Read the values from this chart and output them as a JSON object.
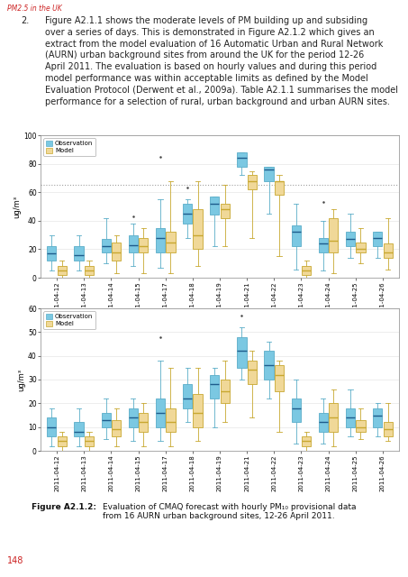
{
  "header_text": "PM2.5 in the UK",
  "para_num": "2.",
  "body_text": "Figure A2.1.1 shows the moderate levels of PM building up and subsiding\nover a series of days. This is demonstrated in Figure A2.1.2 which gives an\nextract from the model evaluation of 16 Automatic Urban and Rural Network\n(AURN) urban background sites from around the UK for the period 12-26\nApril 2011. The evaluation is based on hourly values and during this period\nmodel performance was within acceptable limits as defined by the Model\nEvaluation Protocol (Derwent et al., 2009a). Table A2.1.1 summarises the model\nperformance for a selection of rural, urban background and urban AURN sites.",
  "dates": [
    "2011-04-12",
    "2011-04-13",
    "2011-04-14",
    "2011-04-15",
    "2011-04-17",
    "2011-04-18",
    "2011-04-19",
    "2011-04-21",
    "2011-04-22",
    "2011-04-23",
    "2011-04-24",
    "2011-04-25",
    "2011-04-26"
  ],
  "chart1_obs_q1": [
    12,
    12,
    18,
    18,
    18,
    38,
    44,
    78,
    68,
    22,
    18,
    22,
    22
  ],
  "chart1_obs_med": [
    17,
    16,
    22,
    23,
    28,
    45,
    52,
    84,
    76,
    32,
    24,
    27,
    28
  ],
  "chart1_obs_q3": [
    22,
    22,
    27,
    30,
    35,
    52,
    57,
    88,
    78,
    37,
    28,
    32,
    32
  ],
  "chart1_obs_whi": [
    30,
    30,
    42,
    38,
    55,
    55,
    57,
    88,
    78,
    52,
    40,
    45,
    32
  ],
  "chart1_obs_wlo": [
    5,
    5,
    10,
    8,
    7,
    28,
    22,
    72,
    45,
    6,
    5,
    14,
    14
  ],
  "chart1_obs_out_high": [
    null,
    null,
    null,
    43,
    85,
    63,
    null,
    null,
    null,
    null,
    53,
    null,
    null
  ],
  "chart1_mod_q1": [
    2,
    2,
    12,
    18,
    18,
    20,
    42,
    62,
    58,
    2,
    18,
    18,
    14
  ],
  "chart1_mod_med": [
    5,
    5,
    18,
    22,
    25,
    30,
    48,
    68,
    68,
    5,
    26,
    20,
    18
  ],
  "chart1_mod_q3": [
    8,
    8,
    25,
    28,
    32,
    48,
    52,
    72,
    68,
    8,
    42,
    25,
    24
  ],
  "chart1_mod_whi": [
    12,
    12,
    30,
    35,
    68,
    68,
    65,
    75,
    72,
    12,
    48,
    35,
    42
  ],
  "chart1_mod_wlo": [
    0,
    0,
    3,
    3,
    3,
    8,
    22,
    28,
    15,
    0,
    3,
    10,
    6
  ],
  "chart1_mod_out_high": [
    null,
    null,
    null,
    null,
    null,
    null,
    null,
    null,
    null,
    null,
    null,
    null,
    null
  ],
  "chart1_dashed_line": 65,
  "chart1_ylim": [
    0,
    100
  ],
  "chart1_yticks": [
    0,
    20,
    40,
    60,
    80,
    100
  ],
  "chart1_ylabel": "ug/m³",
  "chart2_obs_q1": [
    6,
    6,
    10,
    10,
    10,
    18,
    22,
    35,
    30,
    12,
    8,
    10,
    10
  ],
  "chart2_obs_med": [
    10,
    8,
    13,
    14,
    16,
    22,
    28,
    42,
    36,
    18,
    12,
    14,
    15
  ],
  "chart2_obs_q3": [
    14,
    12,
    16,
    18,
    22,
    28,
    32,
    48,
    42,
    22,
    16,
    18,
    18
  ],
  "chart2_obs_whi": [
    18,
    18,
    22,
    22,
    38,
    35,
    35,
    52,
    46,
    30,
    22,
    26,
    20
  ],
  "chart2_obs_wlo": [
    2,
    2,
    5,
    4,
    4,
    12,
    10,
    30,
    22,
    3,
    3,
    6,
    6
  ],
  "chart2_obs_out_high": [
    null,
    null,
    null,
    null,
    48,
    null,
    null,
    57,
    null,
    null,
    null,
    null,
    null
  ],
  "chart2_mod_q1": [
    2,
    2,
    6,
    8,
    8,
    10,
    20,
    28,
    25,
    2,
    8,
    8,
    6
  ],
  "chart2_mod_med": [
    4,
    4,
    9,
    12,
    12,
    16,
    25,
    34,
    32,
    4,
    14,
    10,
    9
  ],
  "chart2_mod_q3": [
    6,
    6,
    13,
    16,
    18,
    24,
    30,
    38,
    36,
    6,
    20,
    13,
    12
  ],
  "chart2_mod_whi": [
    8,
    8,
    18,
    20,
    35,
    35,
    38,
    42,
    38,
    8,
    26,
    18,
    20
  ],
  "chart2_mod_wlo": [
    0,
    0,
    2,
    2,
    2,
    4,
    12,
    14,
    8,
    0,
    2,
    5,
    4
  ],
  "chart2_mod_out_high": [
    null,
    null,
    null,
    null,
    null,
    null,
    null,
    null,
    null,
    null,
    null,
    null,
    null
  ],
  "chart2_ylim": [
    0,
    60
  ],
  "chart2_yticks": [
    0,
    10,
    20,
    30,
    40,
    50,
    60
  ],
  "chart2_ylabel": "ug/m³",
  "obs_color": "#7BC8E2",
  "obs_edge": "#5AADC8",
  "mod_color": "#F0D898",
  "mod_edge": "#C8A830",
  "median_color": "#1E5C8C",
  "flier_color": "#444444",
  "legend_obs": "Observation",
  "legend_mod": "Model",
  "caption_bold": "Figure A2.1.2:",
  "caption_text_1": " Evaluation of CMAQ forecast with hourly PM",
  "caption_sub": "10",
  "caption_text_2": " provisional data\nfrom 16 AURN urban background sites, 12-26 April 2011.",
  "footer_text": "148",
  "bg_color": "#FFFFFF",
  "box_width": 0.34
}
